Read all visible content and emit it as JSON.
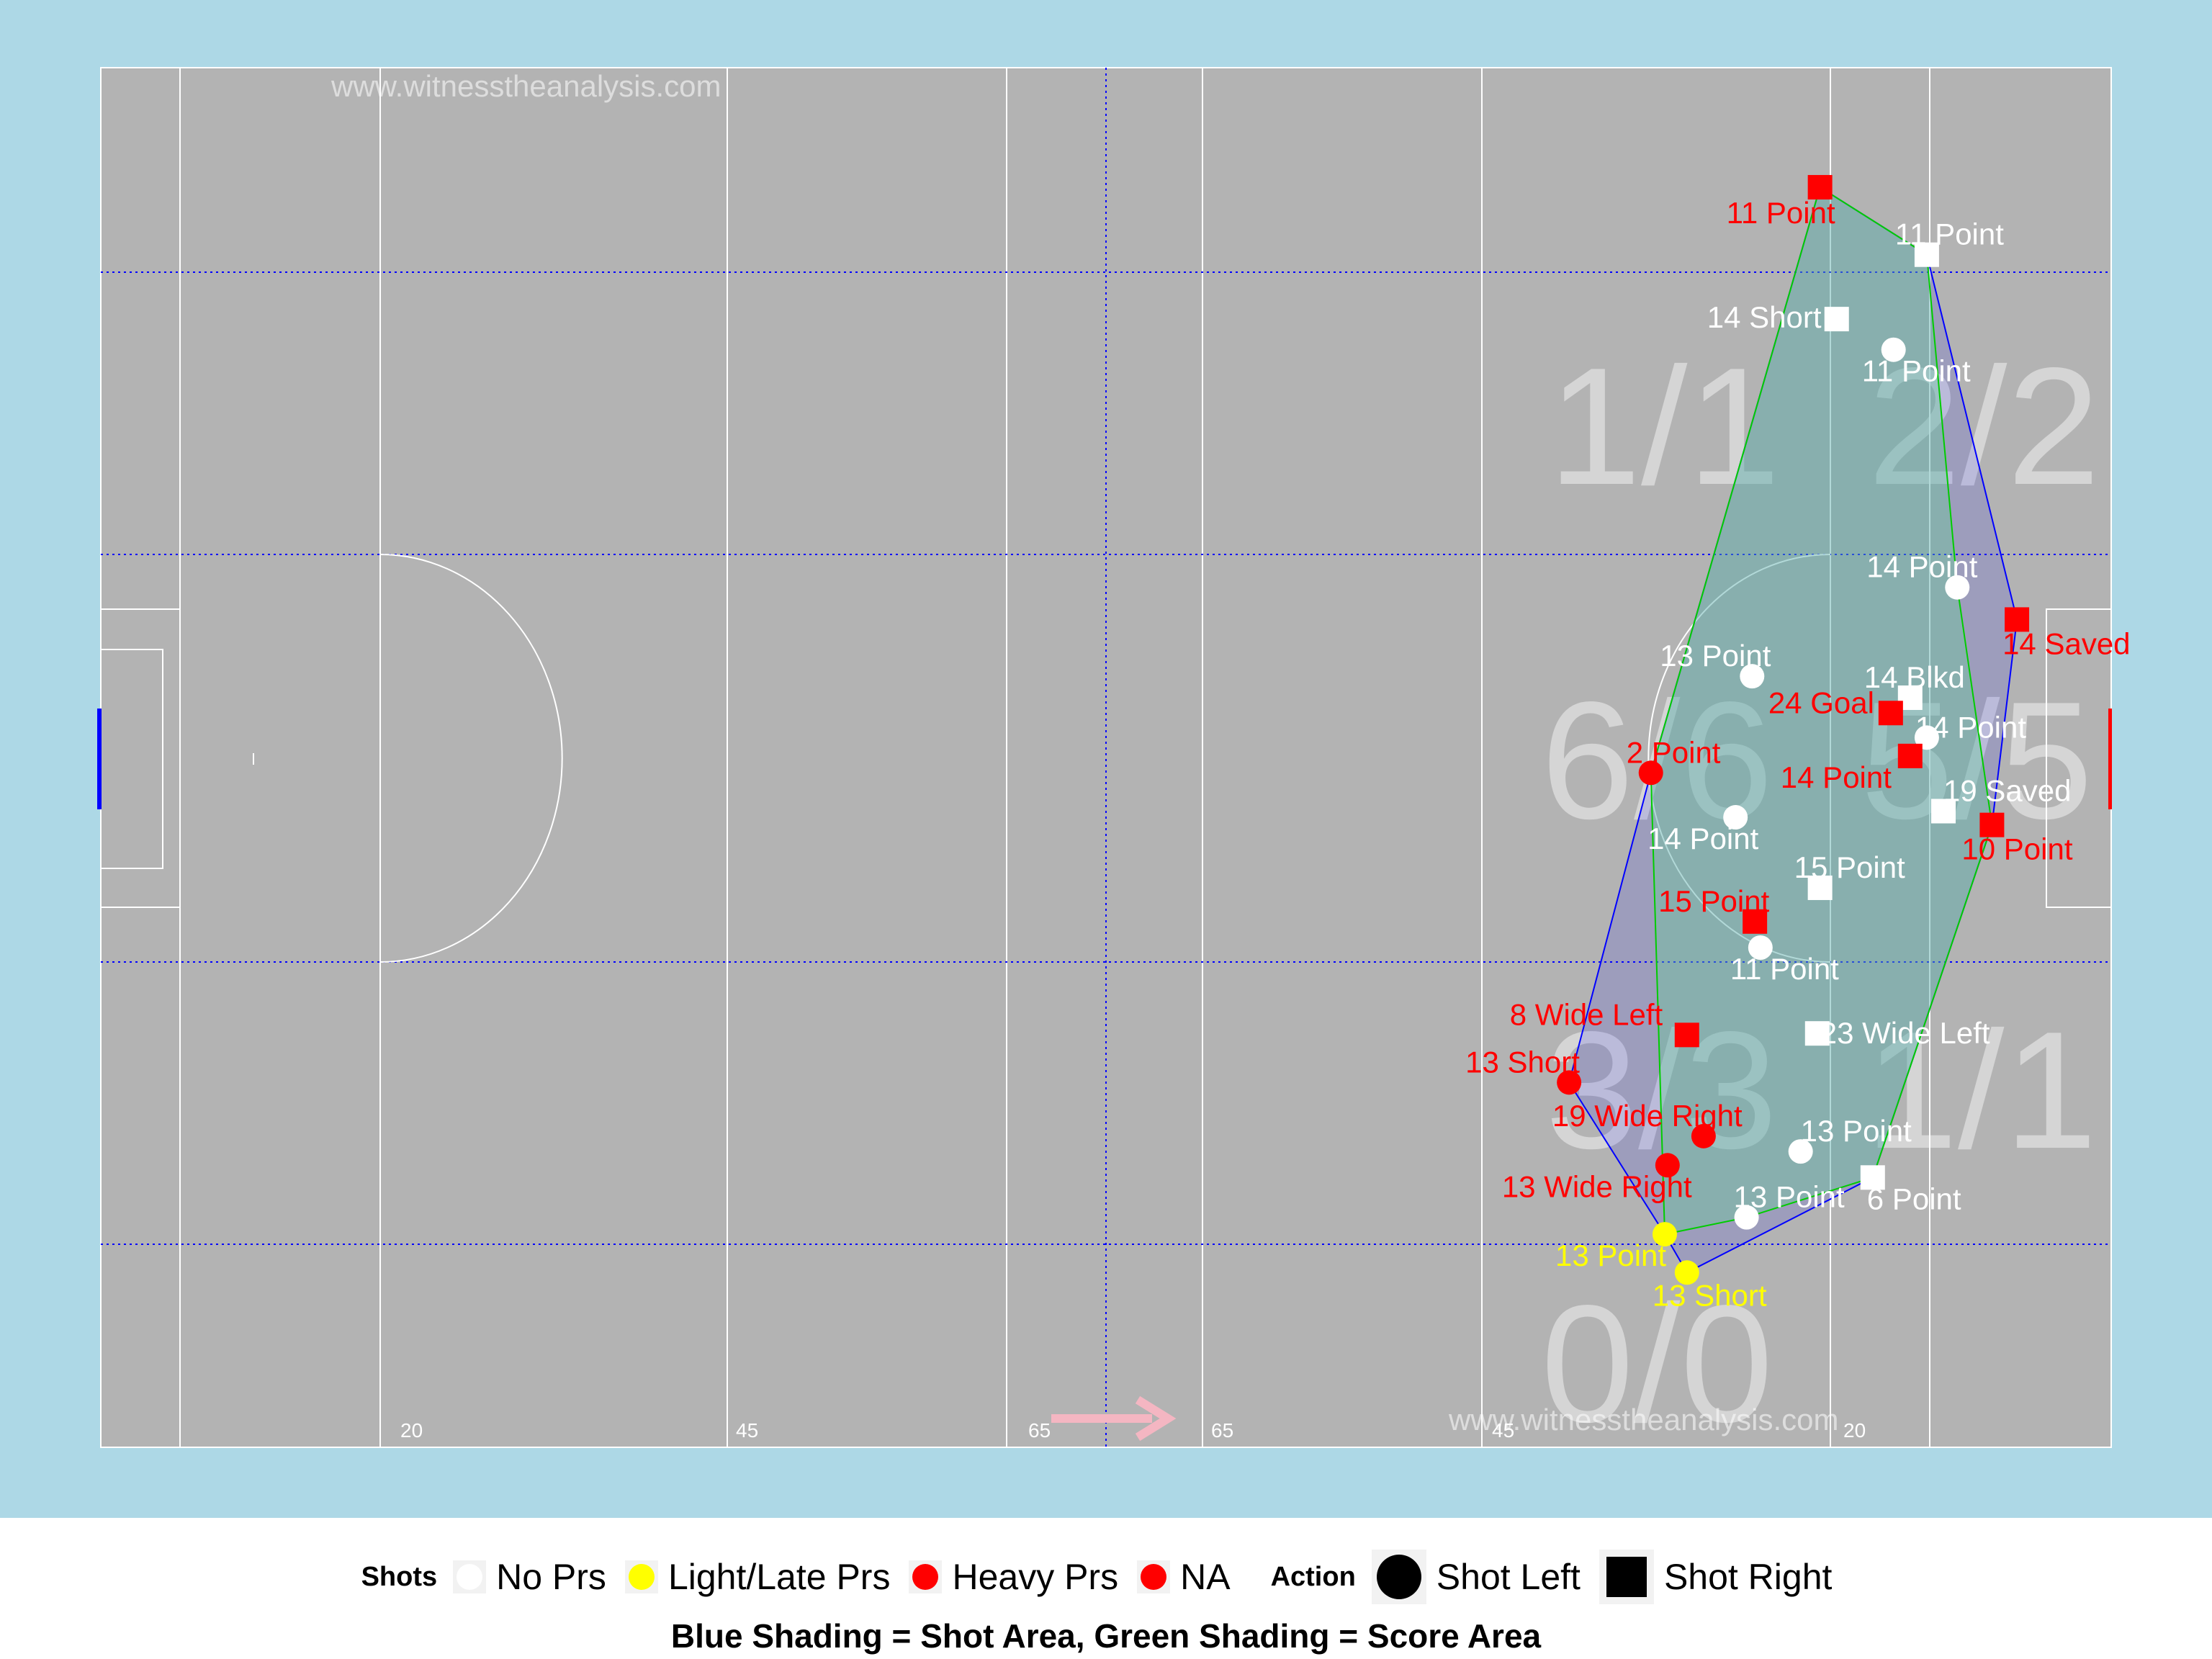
{
  "watermarks": [
    "www.witnesstheanalysis.com",
    "www.witnesstheanalysis.com"
  ],
  "pitch_labels": [
    "20",
    "45",
    "65",
    "65",
    "45",
    "20"
  ],
  "zone_labels": [
    "1/1",
    "2/2",
    "6/6",
    "5/5",
    "3/3",
    "1/1",
    "0/0"
  ],
  "legend": {
    "shots_title": "Shots",
    "shots_items": [
      {
        "label": "No Prs",
        "color": "#ffffff"
      },
      {
        "label": "Light/Late Prs",
        "color": "#ffff00"
      },
      {
        "label": "Heavy Prs",
        "color": "#ff0000"
      },
      {
        "label": "NA",
        "color": "#ff0000"
      }
    ],
    "action_title": "Action",
    "action_items": [
      {
        "label": "Shot Left",
        "shape": "circle"
      },
      {
        "label": "Shot Right",
        "shape": "square"
      }
    ]
  },
  "caption": "Blue Shading = Shot Area, Green Shading = Score Area",
  "colors": {
    "background": "#add8e6",
    "pitch": "#b3b3b3",
    "no_prs": "#ffffff",
    "light_prs": "#ffff00",
    "heavy_prs": "#ff0000",
    "shot_area": "#0000ff",
    "score_area": "#00cc00"
  },
  "chart_data": {
    "type": "scatter",
    "title": "",
    "xlabel": "",
    "ylabel": "",
    "x_range": [
      0,
      145
    ],
    "y_range": [
      0,
      90
    ],
    "legend_position": "bottom",
    "series": [
      {
        "name": "No Prs",
        "points": [
          {
            "x": 125.2,
            "y": 73.6,
            "label": "14 Short",
            "shape": "square"
          },
          {
            "x": 131.7,
            "y": 77.8,
            "label": "11 Point",
            "shape": "square"
          },
          {
            "x": 129.3,
            "y": 71.6,
            "label": "11 Point",
            "shape": "circle"
          },
          {
            "x": 133.9,
            "y": 56.1,
            "label": "14 Point",
            "shape": "circle"
          },
          {
            "x": 119.1,
            "y": 50.3,
            "label": "13 Point",
            "shape": "circle"
          },
          {
            "x": 130.5,
            "y": 48.9,
            "label": "14 Blkd",
            "shape": "square"
          },
          {
            "x": 131.7,
            "y": 46.3,
            "label": "14 Point",
            "shape": "circle"
          },
          {
            "x": 132.9,
            "y": 41.5,
            "label": "19 Saved",
            "shape": "square"
          },
          {
            "x": 117.9,
            "y": 41.1,
            "label": "14 Point",
            "shape": "circle"
          },
          {
            "x": 124.0,
            "y": 36.5,
            "label": "15 Point",
            "shape": "square"
          },
          {
            "x": 119.7,
            "y": 32.6,
            "label": "11 Point",
            "shape": "circle"
          },
          {
            "x": 123.8,
            "y": 27.0,
            "label": "23 Wide Left",
            "shape": "square"
          },
          {
            "x": 122.6,
            "y": 19.3,
            "label": "13 Point",
            "shape": "circle"
          },
          {
            "x": 127.8,
            "y": 17.6,
            "label": "6 Point",
            "shape": "square"
          },
          {
            "x": 118.7,
            "y": 15.0,
            "label": "13 Point",
            "shape": "circle"
          }
        ]
      },
      {
        "name": "Light/Late Prs",
        "points": [
          {
            "x": 112.8,
            "y": 13.9,
            "label": "13 Point",
            "shape": "circle"
          },
          {
            "x": 114.4,
            "y": 11.4,
            "label": "13 Short",
            "shape": "circle"
          }
        ]
      },
      {
        "name": "Heavy Prs",
        "points": [
          {
            "x": 124.0,
            "y": 82.2,
            "label": "11 Point",
            "shape": "square"
          },
          {
            "x": 138.2,
            "y": 54.0,
            "label": "14 Saved",
            "shape": "square"
          },
          {
            "x": 129.1,
            "y": 47.9,
            "label": "24 Goal",
            "shape": "square"
          },
          {
            "x": 130.5,
            "y": 45.1,
            "label": "14 Point",
            "shape": "square"
          },
          {
            "x": 111.8,
            "y": 44.0,
            "label": "2 Point",
            "shape": "circle"
          },
          {
            "x": 136.4,
            "y": 40.6,
            "label": "10 Point",
            "shape": "square"
          },
          {
            "x": 119.3,
            "y": 34.3,
            "label": "15 Point",
            "shape": "square"
          },
          {
            "x": 114.4,
            "y": 26.9,
            "label": "8 Wide Left",
            "shape": "square"
          },
          {
            "x": 105.9,
            "y": 23.8,
            "label": "13 Short",
            "shape": "circle"
          },
          {
            "x": 115.6,
            "y": 20.3,
            "label": "19 Wide Right",
            "shape": "circle"
          },
          {
            "x": 113.0,
            "y": 18.4,
            "label": "13 Wide Right",
            "shape": "circle"
          }
        ]
      }
    ],
    "shot_area_hull": [
      [
        124.0,
        82.2
      ],
      [
        131.7,
        77.8
      ],
      [
        138.2,
        54.0
      ],
      [
        136.4,
        40.6
      ],
      [
        127.8,
        17.6
      ],
      [
        114.4,
        11.4
      ],
      [
        112.8,
        13.9
      ],
      [
        105.9,
        23.8
      ],
      [
        111.8,
        44.0
      ]
    ],
    "score_area_hull": [
      [
        124.0,
        82.2
      ],
      [
        131.7,
        77.8
      ],
      [
        133.9,
        56.1
      ],
      [
        136.4,
        40.6
      ],
      [
        127.8,
        17.6
      ],
      [
        118.7,
        15.0
      ],
      [
        112.8,
        13.9
      ],
      [
        111.8,
        44.0
      ]
    ],
    "zones": [
      {
        "label": "1/1",
        "zone": "top-left"
      },
      {
        "label": "2/2",
        "zone": "top-right"
      },
      {
        "label": "6/6",
        "zone": "center-left"
      },
      {
        "label": "5/5",
        "zone": "center-right"
      },
      {
        "label": "3/3",
        "zone": "lower-left"
      },
      {
        "label": "1/1",
        "zone": "lower-right"
      },
      {
        "label": "0/0",
        "zone": "bottom-left"
      }
    ]
  }
}
